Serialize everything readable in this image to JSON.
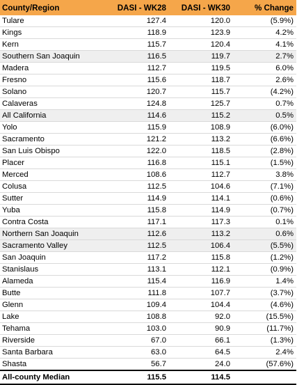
{
  "table": {
    "headers": [
      "County/Region",
      "DASI - WK28",
      "DASI - WK30",
      "% Change"
    ],
    "rows": [
      {
        "name": "Tulare",
        "wk28": "127.4",
        "wk30": "120.0",
        "change": "(5.9%)",
        "shaded": false
      },
      {
        "name": "Kings",
        "wk28": "118.9",
        "wk30": "123.9",
        "change": "4.2%",
        "shaded": false
      },
      {
        "name": "Kern",
        "wk28": "115.7",
        "wk30": "120.4",
        "change": "4.1%",
        "shaded": false
      },
      {
        "name": "Southern San Joaquin",
        "wk28": "116.5",
        "wk30": "119.7",
        "change": "2.7%",
        "shaded": true
      },
      {
        "name": "Madera",
        "wk28": "112.7",
        "wk30": "119.5",
        "change": "6.0%",
        "shaded": false
      },
      {
        "name": "Fresno",
        "wk28": "115.6",
        "wk30": "118.7",
        "change": "2.6%",
        "shaded": false
      },
      {
        "name": "Solano",
        "wk28": "120.7",
        "wk30": "115.7",
        "change": "(4.2%)",
        "shaded": false
      },
      {
        "name": "Calaveras",
        "wk28": "124.8",
        "wk30": "125.7",
        "change": "0.7%",
        "shaded": false
      },
      {
        "name": "All California",
        "wk28": "114.6",
        "wk30": "115.2",
        "change": "0.5%",
        "shaded": true
      },
      {
        "name": "Yolo",
        "wk28": "115.9",
        "wk30": "108.9",
        "change": "(6.0%)",
        "shaded": false
      },
      {
        "name": "Sacramento",
        "wk28": "121.2",
        "wk30": "113.2",
        "change": "(6.6%)",
        "shaded": false
      },
      {
        "name": "San Luis Obispo",
        "wk28": "122.0",
        "wk30": "118.5",
        "change": "(2.8%)",
        "shaded": false
      },
      {
        "name": "Placer",
        "wk28": "116.8",
        "wk30": "115.1",
        "change": "(1.5%)",
        "shaded": false
      },
      {
        "name": "Merced",
        "wk28": "108.6",
        "wk30": "112.7",
        "change": "3.8%",
        "shaded": false
      },
      {
        "name": "Colusa",
        "wk28": "112.5",
        "wk30": "104.6",
        "change": "(7.1%)",
        "shaded": false
      },
      {
        "name": "Sutter",
        "wk28": "114.9",
        "wk30": "114.1",
        "change": "(0.6%)",
        "shaded": false
      },
      {
        "name": "Yuba",
        "wk28": "115.8",
        "wk30": "114.9",
        "change": "(0.7%)",
        "shaded": false
      },
      {
        "name": "Contra Costa",
        "wk28": "117.1",
        "wk30": "117.3",
        "change": "0.1%",
        "shaded": false
      },
      {
        "name": "Northern San Joaquin",
        "wk28": "112.6",
        "wk30": "113.2",
        "change": "0.6%",
        "shaded": true
      },
      {
        "name": "Sacramento Valley",
        "wk28": "112.5",
        "wk30": "106.4",
        "change": "(5.5%)",
        "shaded": true
      },
      {
        "name": "San Joaquin",
        "wk28": "117.2",
        "wk30": "115.8",
        "change": "(1.2%)",
        "shaded": false
      },
      {
        "name": "Stanislaus",
        "wk28": "113.1",
        "wk30": "112.1",
        "change": "(0.9%)",
        "shaded": false
      },
      {
        "name": "Alameda",
        "wk28": "115.4",
        "wk30": "116.9",
        "change": "1.4%",
        "shaded": false
      },
      {
        "name": "Butte",
        "wk28": "111.8",
        "wk30": "107.7",
        "change": "(3.7%)",
        "shaded": false
      },
      {
        "name": "Glenn",
        "wk28": "109.4",
        "wk30": "104.4",
        "change": "(4.6%)",
        "shaded": false
      },
      {
        "name": "Lake",
        "wk28": "108.8",
        "wk30": "92.0",
        "change": "(15.5%)",
        "shaded": false
      },
      {
        "name": "Tehama",
        "wk28": "103.0",
        "wk30": "90.9",
        "change": "(11.7%)",
        "shaded": false
      },
      {
        "name": "Riverside",
        "wk28": "67.0",
        "wk30": "66.1",
        "change": "(1.3%)",
        "shaded": false
      },
      {
        "name": "Santa Barbara",
        "wk28": "63.0",
        "wk30": "64.5",
        "change": "2.4%",
        "shaded": false
      },
      {
        "name": "Shasta",
        "wk28": "56.7",
        "wk30": "24.0",
        "change": "(57.6%)",
        "shaded": false
      }
    ],
    "footer": {
      "name": "All-county Median",
      "wk28": "115.5",
      "wk30": "114.5",
      "change": ""
    },
    "colors": {
      "header_bg": "#f5a64a",
      "shade_bg": "#efefef"
    }
  }
}
